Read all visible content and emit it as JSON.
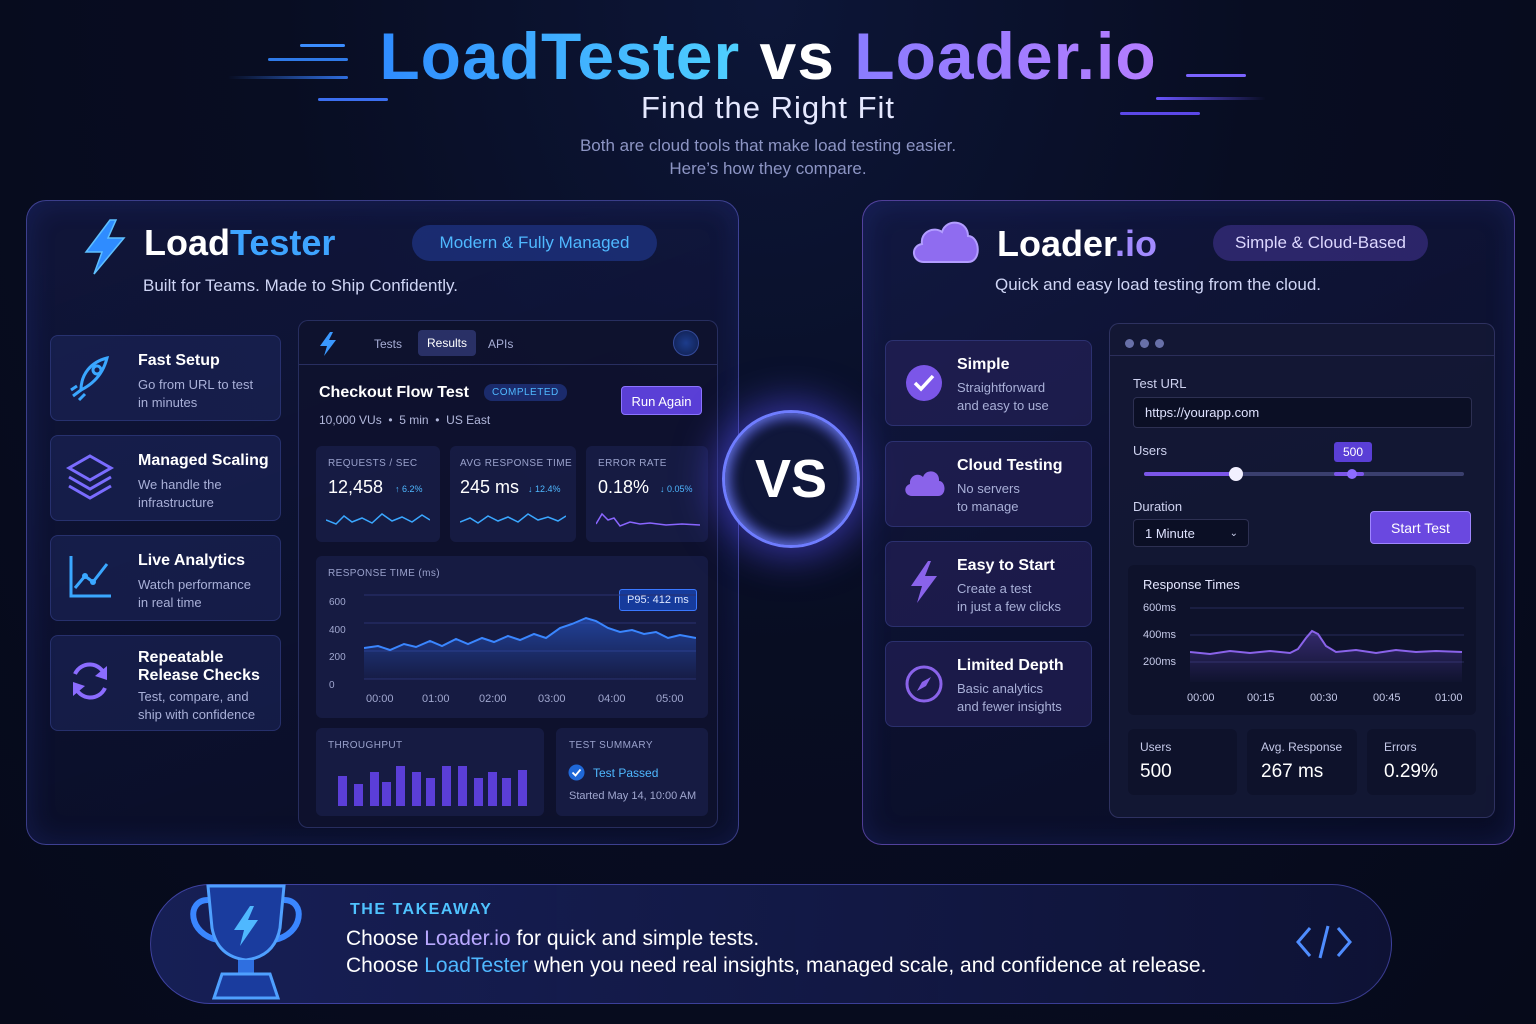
{
  "header": {
    "title_left": "LoadTester",
    "title_vs": "vs",
    "title_right": "Loader.io",
    "subtitle": "Find the Right Fit",
    "lead_line1": "Both are cloud tools that make load testing easier.",
    "lead_line2": "Here’s how they compare."
  },
  "loadtester": {
    "brand_a": "Load",
    "brand_b": "Tester",
    "badge": "Modern & Fully Managed",
    "tagline": "Built for Teams. Made to Ship Confidently.",
    "features": [
      {
        "title": "Fast Setup",
        "desc1": "Go from URL to test",
        "desc2": "in minutes",
        "icon": "rocket-icon"
      },
      {
        "title": "Managed Scaling",
        "desc1": "We handle the",
        "desc2": "infrastructure",
        "icon": "layers-icon"
      },
      {
        "title": "Live Analytics",
        "desc1": "Watch performance",
        "desc2": "in real time",
        "icon": "chart-line-icon"
      },
      {
        "title1": "Repeatable",
        "title2": "Release Checks",
        "desc1": "Test, compare, and",
        "desc2": "ship with confidence",
        "icon": "refresh-icon"
      }
    ],
    "dashboard": {
      "tabs": [
        "Tests",
        "Results",
        "APIs"
      ],
      "active_tab": "Results",
      "test_name": "Checkout Flow Test",
      "status": "COMPLETED",
      "meta": [
        "10,000 VUs",
        "5 min",
        "US East"
      ],
      "run_again": "Run Again",
      "metrics": [
        {
          "label": "REQUESTS / SEC",
          "value": "12,458",
          "delta": "↑ 6.2%"
        },
        {
          "label": "AVG RESPONSE TIME",
          "value": "245 ms",
          "delta": "↓ 12.4%"
        },
        {
          "label": "ERROR RATE",
          "value": "0.18%",
          "delta": "↓ 0.05%"
        }
      ],
      "response_chart": {
        "label": "RESPONSE TIME (ms)",
        "badge": "P95: 412 ms",
        "y_ticks": [
          "600",
          "400",
          "200",
          "0"
        ],
        "x_ticks": [
          "00:00",
          "01:00",
          "02:00",
          "03:00",
          "04:00",
          "05:00"
        ]
      },
      "throughput_label": "THROUGHPUT",
      "summary_label": "TEST SUMMARY",
      "summary_status": "Test Passed",
      "summary_started": "Started May 14, 10:00 AM"
    }
  },
  "vs_label": "VS",
  "loaderio": {
    "brand_a": "Loader",
    "brand_b": ".io",
    "badge": "Simple & Cloud-Based",
    "tagline": "Quick and easy load testing from the cloud.",
    "features": [
      {
        "title": "Simple",
        "desc1": "Straightforward",
        "desc2": "and easy to use",
        "icon": "check-circle-icon"
      },
      {
        "title": "Cloud Testing",
        "desc1": "No servers",
        "desc2": "to manage",
        "icon": "cloud-icon"
      },
      {
        "title": "Easy to Start",
        "desc1": "Create a test",
        "desc2": "in just a few clicks",
        "icon": "bolt-icon"
      },
      {
        "title": "Limited Depth",
        "desc1": "Basic analytics",
        "desc2": "and fewer insights",
        "icon": "compass-icon"
      }
    ],
    "form": {
      "url_label": "Test URL",
      "url_value": "https://yourapp.com",
      "users_label": "Users",
      "users_value": "500",
      "duration_label": "Duration",
      "duration_value": "1 Minute",
      "start_button": "Start Test"
    },
    "response_chart": {
      "label": "Response Times",
      "y_ticks": [
        "600ms",
        "400ms",
        "200ms"
      ],
      "x_ticks": [
        "00:00",
        "00:15",
        "00:30",
        "00:45",
        "01:00"
      ]
    },
    "stats": [
      {
        "label": "Users",
        "value": "500"
      },
      {
        "label": "Avg. Response",
        "value": "267 ms"
      },
      {
        "label": "Errors",
        "value": "0.29%"
      }
    ]
  },
  "takeaway": {
    "heading": "THE TAKEAWAY",
    "line1_a": "Choose ",
    "line1_b": "Loader.io",
    "line1_c": " for quick and simple tests.",
    "line2_a": "Choose ",
    "line2_b": "LoadTester",
    "line2_c": " when you need real insights, managed scale, and confidence at release."
  }
}
